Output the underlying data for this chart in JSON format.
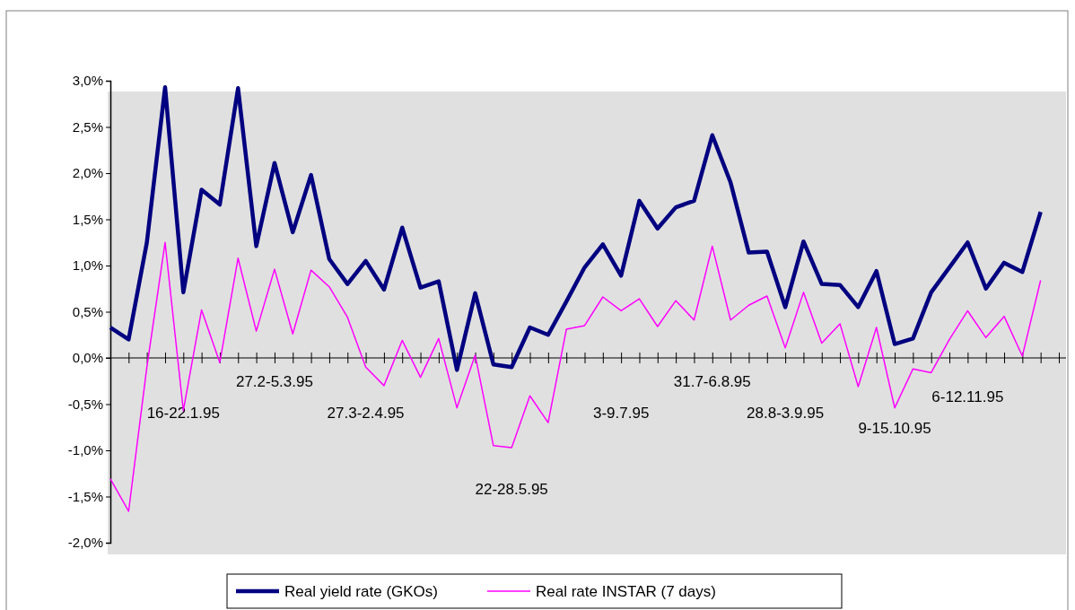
{
  "chart_data": {
    "type": "line",
    "categories": [
      null,
      null,
      null,
      null,
      "16-22.1.95",
      null,
      null,
      null,
      null,
      "27.2-5.3.95",
      null,
      null,
      null,
      null,
      "27.3-2.4.95",
      null,
      null,
      null,
      null,
      null,
      null,
      null,
      "22-28.5.95",
      null,
      null,
      null,
      null,
      null,
      "3-9.7.95",
      null,
      null,
      null,
      null,
      "31.7-6.8.95",
      null,
      null,
      null,
      "28.8-3.9.95",
      null,
      null,
      null,
      null,
      null,
      "9-15.10.95",
      null,
      null,
      null,
      "6-12.11.95",
      null,
      null,
      null,
      null,
      null
    ],
    "series": [
      {
        "name": "Real yield rate (GKOs)",
        "color": "#000080",
        "values": [
          0.33,
          0.2,
          1.25,
          2.93,
          0.71,
          1.82,
          1.66,
          2.92,
          1.21,
          2.11,
          1.36,
          1.98,
          1.07,
          0.8,
          1.05,
          0.74,
          1.41,
          0.76,
          0.83,
          -0.13,
          0.7,
          -0.07,
          -0.1,
          0.33,
          0.25,
          0.61,
          0.98,
          1.23,
          0.89,
          1.7,
          1.4,
          1.63,
          1.7,
          2.41,
          1.9,
          1.14,
          1.15,
          0.55,
          1.26,
          0.8,
          0.79,
          0.55,
          0.94,
          0.15,
          0.21,
          0.71,
          0.98,
          1.25,
          0.75,
          1.03,
          0.93,
          1.58,
          null
        ]
      },
      {
        "name": "Real rate INSTAR (7 days)",
        "color": "#ff00ff",
        "values": [
          -1.31,
          -1.66,
          -0.1,
          1.25,
          -0.57,
          0.52,
          -0.05,
          1.08,
          0.29,
          0.96,
          0.26,
          0.95,
          0.77,
          0.44,
          -0.1,
          -0.3,
          0.19,
          -0.21,
          0.21,
          -0.54,
          0.03,
          -0.95,
          -0.97,
          -0.41,
          -0.7,
          0.31,
          0.35,
          0.66,
          0.51,
          0.64,
          0.34,
          0.62,
          0.41,
          1.21,
          0.41,
          0.57,
          0.67,
          0.11,
          0.71,
          0.16,
          0.37,
          -0.31,
          0.33,
          -0.54,
          -0.12,
          -0.16,
          0.2,
          0.51,
          0.22,
          0.45,
          0.02,
          0.84,
          null
        ]
      }
    ],
    "ylim": [
      -2,
      3
    ],
    "yticks": [
      {
        "value": -2,
        "label": "-2,0%"
      },
      {
        "value": -1.5,
        "label": "-1,5%"
      },
      {
        "value": -1,
        "label": "-1,0%"
      },
      {
        "value": -0.5,
        "label": "-0,5%"
      },
      {
        "value": 0,
        "label": "0,0%"
      },
      {
        "value": 0.5,
        "label": "0,5%"
      },
      {
        "value": 1,
        "label": "1,0%"
      },
      {
        "value": 1.5,
        "label": "1,5%"
      },
      {
        "value": 2,
        "label": "2,0%"
      },
      {
        "value": 2.5,
        "label": "2,5%"
      },
      {
        "value": 3,
        "label": "3,0%"
      }
    ],
    "legend": "bottom",
    "marker": "none"
  }
}
